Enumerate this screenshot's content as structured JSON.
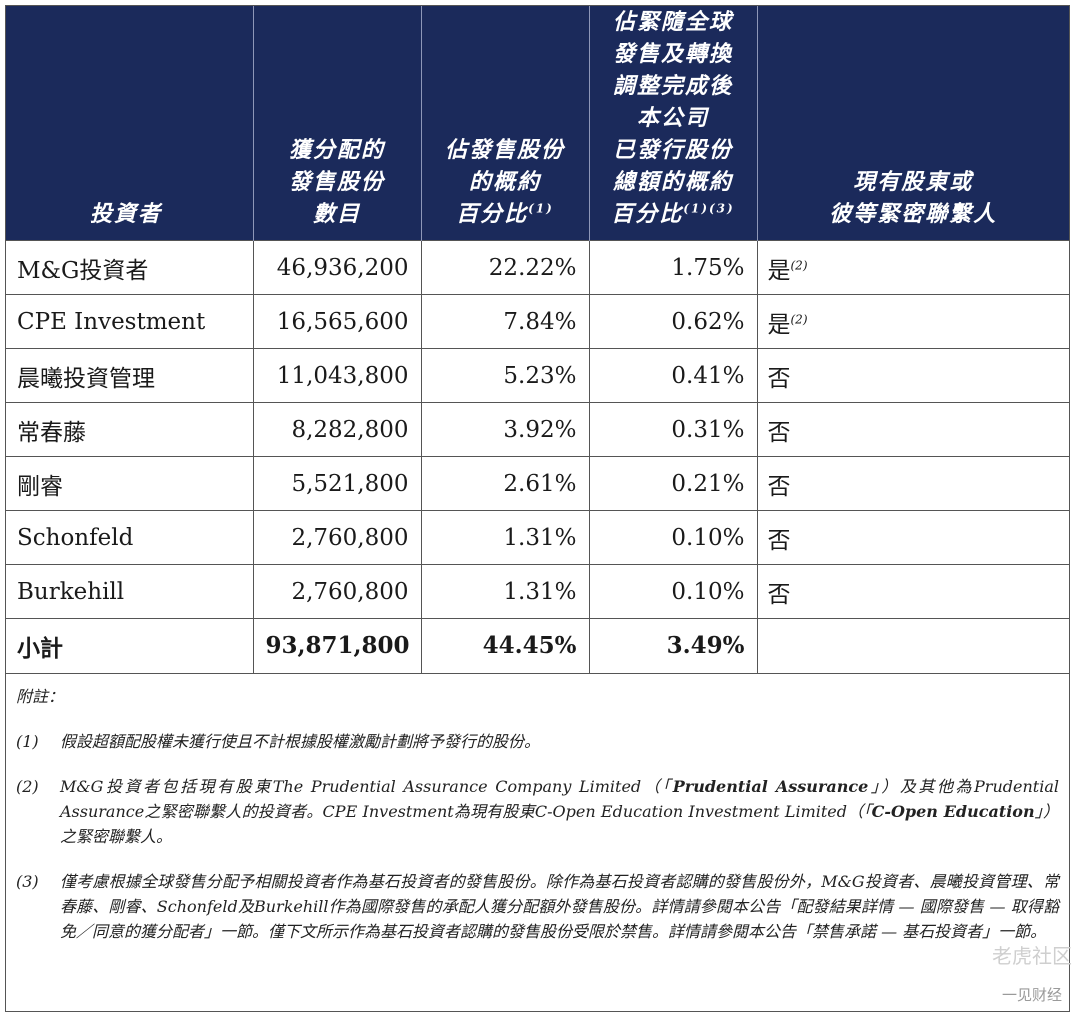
{
  "table": {
    "headers": {
      "investor": "投資者",
      "shares": [
        "獲分配的",
        "發售股份",
        "數目"
      ],
      "pct_offer": [
        "佔發售股份",
        "的概約",
        "百分比"
      ],
      "pct_offer_sup": "(1)",
      "pct_total": [
        "佔緊隨全球",
        "發售及轉換",
        "調整完成後",
        "本公司",
        "已發行股份",
        "總額的概約",
        "百分比"
      ],
      "pct_total_sup": "(1)(3)",
      "existing": [
        "現有股東或",
        "彼等緊密聯繫人"
      ]
    },
    "rows": [
      {
        "investor": "M&G投資者",
        "shares": "46,936,200",
        "pct_offer": "22.22%",
        "pct_total": "1.75%",
        "existing": "是",
        "existing_sup": "(2)"
      },
      {
        "investor": "CPE Investment",
        "shares": "16,565,600",
        "pct_offer": "7.84%",
        "pct_total": "0.62%",
        "existing": "是",
        "existing_sup": "(2)"
      },
      {
        "investor": "晨曦投資管理",
        "shares": "11,043,800",
        "pct_offer": "5.23%",
        "pct_total": "0.41%",
        "existing": "否",
        "existing_sup": ""
      },
      {
        "investor": "常春藤",
        "shares": "8,282,800",
        "pct_offer": "3.92%",
        "pct_total": "0.31%",
        "existing": "否",
        "existing_sup": ""
      },
      {
        "investor": "剛睿",
        "shares": "5,521,800",
        "pct_offer": "2.61%",
        "pct_total": "0.21%",
        "existing": "否",
        "existing_sup": ""
      },
      {
        "investor": "Schonfeld",
        "shares": "2,760,800",
        "pct_offer": "1.31%",
        "pct_total": "0.10%",
        "existing": "否",
        "existing_sup": ""
      },
      {
        "investor": "Burkehill",
        "shares": "2,760,800",
        "pct_offer": "1.31%",
        "pct_total": "0.10%",
        "existing": "否",
        "existing_sup": ""
      }
    ],
    "total": {
      "label": "小計",
      "shares": "93,871,800",
      "pct_offer": "44.45%",
      "pct_total": "3.49%"
    }
  },
  "notes": {
    "heading": "附註：",
    "items": [
      {
        "key": "(1)",
        "parts": [
          {
            "text": "假設超額配股權未獲行使且不計根據股權激勵計劃將予發行的股份。",
            "bold": false
          }
        ]
      },
      {
        "key": "(2)",
        "parts": [
          {
            "text": "M&G投資者包括現有股東The Prudential Assurance Company Limited（「",
            "bold": false
          },
          {
            "text": "Prudential Assurance",
            "bold": true
          },
          {
            "text": "」）及其他為Prudential Assurance之緊密聯繫人的投資者。CPE Investment為現有股東C-Open Education Investment Limited（「",
            "bold": false
          },
          {
            "text": "C-Open Education",
            "bold": true
          },
          {
            "text": "」）之緊密聯繫人。",
            "bold": false
          }
        ]
      },
      {
        "key": "(3)",
        "parts": [
          {
            "text": "僅考慮根據全球發售分配予相關投資者作為基石投資者的發售股份。除作為基石投資者認購的發售股份外，M&G投資者、晨曦投資管理、常春藤、剛睿、Schonfeld及Burkehill作為國際發售的承配人獲分配額外發售股份。詳情請參閱本公告「配發結果詳情 — 國際發售 — 取得豁免／同意的獲分配者」一節。僅下文所示作為基石投資者認購的發售股份受限於禁售。詳情請參閱本公告「禁售承諾 — 基石投資者」一節。",
            "bold": false
          }
        ]
      }
    ]
  },
  "watermark": {
    "logo": "老虎社区",
    "brand": "一见财经"
  }
}
